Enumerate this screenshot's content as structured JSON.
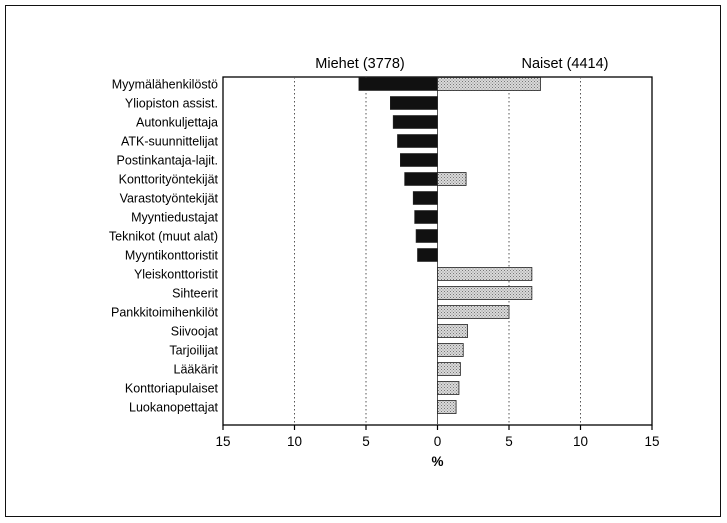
{
  "chart_data": {
    "type": "bar",
    "orientation": "horizontal-diverging",
    "xlabel": "%",
    "xlim": [
      -15,
      15
    ],
    "ticks": [
      -15,
      -10,
      -5,
      0,
      5,
      10,
      15
    ],
    "tick_labels": [
      "15",
      "10",
      "5",
      "0",
      "5",
      "10",
      "15"
    ],
    "categories": [
      "Myymälähenkilöstö",
      "Yliopiston assist.",
      "Autonkuljettaja",
      "ATK-suunnittelijat",
      "Postinkantaja-lajit.",
      "Konttorityöntekijät",
      "Varastotyöntekijät",
      "Myyntiedustajat",
      "Teknikot (muut alat)",
      "Myyntikonttoristit",
      "Yleiskonttoristit",
      "Sihteerit",
      "Pankkitoimihenkilöt",
      "Siivoojat",
      "Tarjoilijat",
      "Lääkärit",
      "Konttoriapulaiset",
      "Luokanopettajat"
    ],
    "series": [
      {
        "name": "Miehet (3778)",
        "color": "#111111",
        "values": [
          5.5,
          3.3,
          3.1,
          2.8,
          2.6,
          2.3,
          1.7,
          1.6,
          1.5,
          1.4,
          0,
          0,
          0,
          0,
          0,
          0,
          0,
          0
        ]
      },
      {
        "name": "Naiset (4414)",
        "color": "#c8c8c8",
        "values": [
          7.2,
          0,
          0,
          0,
          0,
          2.0,
          0,
          0,
          0,
          0,
          6.6,
          6.6,
          5.0,
          2.1,
          1.8,
          1.6,
          1.5,
          1.3
        ]
      }
    ],
    "grid": "vertical-dotted"
  }
}
